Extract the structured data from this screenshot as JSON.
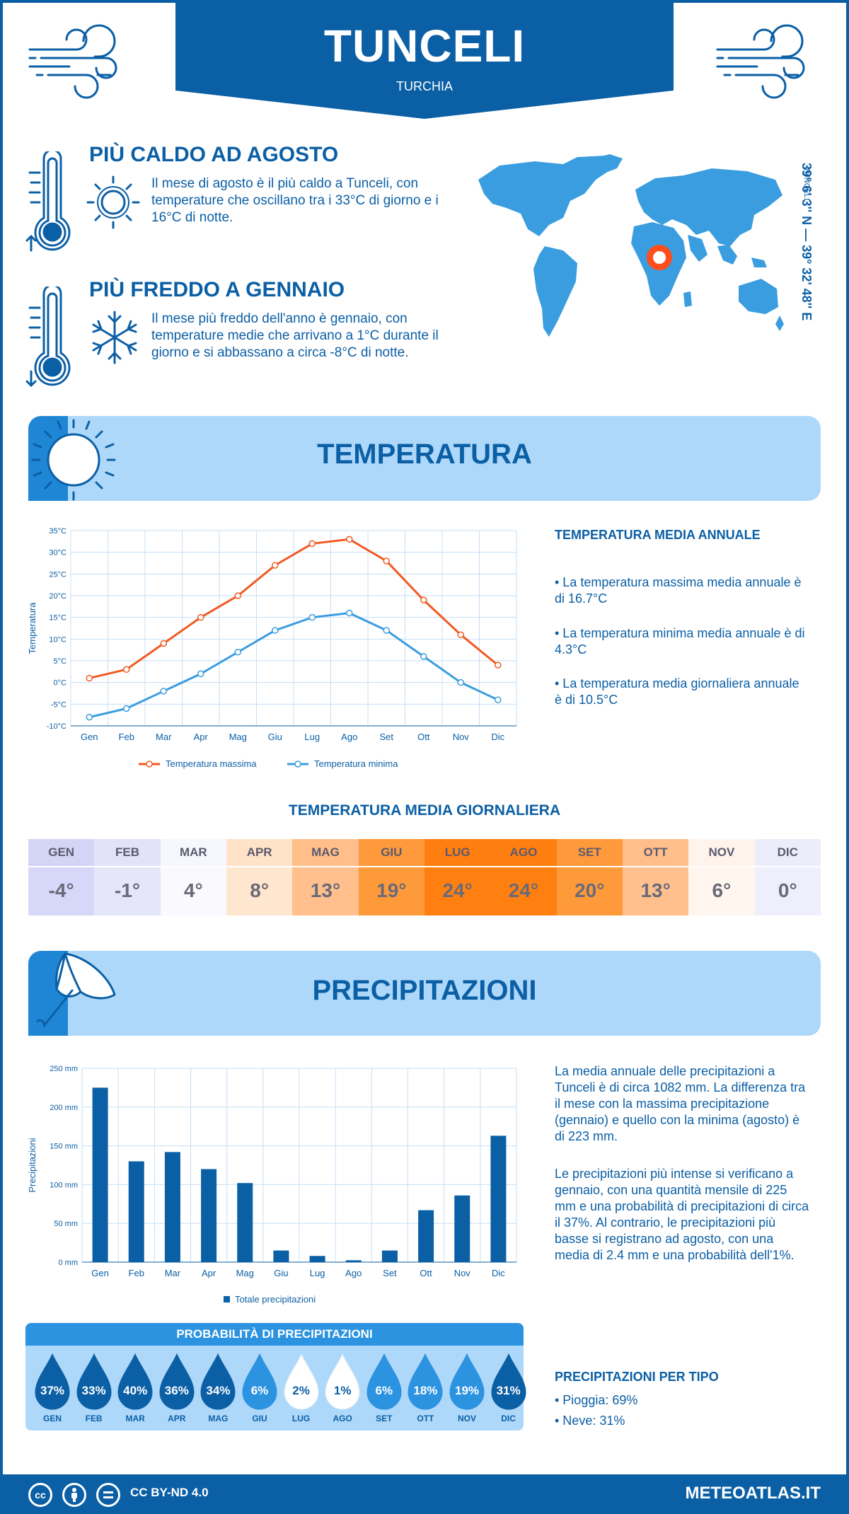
{
  "header": {
    "title": "TUNCELI",
    "subtitle": "TURCHIA"
  },
  "warmest": {
    "title": "PIÙ CALDO AD AGOSTO",
    "text": "Il mese di agosto è il più caldo a Tunceli, con temperature che oscillano tra i 33°C di giorno e i 16°C di notte."
  },
  "coldest": {
    "title": "PIÙ FREDDO A GENNAIO",
    "text": "Il mese più freddo dell'anno è gennaio, con temperature medie che arrivano a 1°C durante il giorno e si abbassano a circa -8°C di notte."
  },
  "location": {
    "city": "TUNCELI",
    "coords": "39° 6' 3'' N — 39° 32' 48'' E"
  },
  "temperature_section": {
    "title": "TEMPERATURA",
    "annual_title": "TEMPERATURA MEDIA ANNUALE",
    "annual_max": "• La temperatura massima media annuale è di 16.7°C",
    "annual_min": "• La temperatura minima media annuale è di 4.3°C",
    "annual_avg": "• La temperatura media giornaliera annuale è di 10.5°C"
  },
  "daily_section": {
    "title": "TEMPERATURA MEDIA GIORNALIERA",
    "months": [
      "GEN",
      "FEB",
      "MAR",
      "APR",
      "MAG",
      "GIU",
      "LUG",
      "AGO",
      "SET",
      "OTT",
      "NOV",
      "DIC"
    ],
    "values": [
      "-4°",
      "-1°",
      "4°",
      "8°",
      "13°",
      "19°",
      "24°",
      "24°",
      "20°",
      "13°",
      "6°",
      "0°"
    ],
    "head_colors": [
      "#d4d4f7",
      "#e2e2f9",
      "#f7f7fe",
      "#ffe2c8",
      "#ffbe8a",
      "#ff9a3c",
      "#ff7e10",
      "#ff7e10",
      "#ff9a3c",
      "#ffbe8a",
      "#fff4ec",
      "#ececfb"
    ],
    "value_colors": [
      "#d7d7fa",
      "#e6e6fb",
      "#f9f9fe",
      "#ffe6cf",
      "#ffc08d",
      "#ff9a3a",
      "#ff7f10",
      "#ff7f10",
      "#ff9a3a",
      "#ffc08d",
      "#fff6ef",
      "#eeeefc"
    ]
  },
  "precip_section": {
    "title": "PRECIPITAZIONI",
    "text1": "La media annuale delle precipitazioni a Tunceli è di circa 1082 mm. La differenza tra il mese con la massima precipitazione (gennaio) e quello con la minima (agosto) è di 223 mm.",
    "text2": "Le precipitazioni più intense si verificano a gennaio, con una quantità mensile di 225 mm e una probabilità di precipitazioni di circa il 37%. Al contrario, le precipitazioni più basse si registrano ad agosto, con una media di 2.4 mm e una probabilità dell'1%.",
    "prob_title": "PROBABILITÀ DI PRECIPITAZIONI",
    "prob_months": [
      "GEN",
      "FEB",
      "MAR",
      "APR",
      "MAG",
      "GIU",
      "LUG",
      "AGO",
      "SET",
      "OTT",
      "NOV",
      "DIC"
    ],
    "prob_values": [
      "37%",
      "33%",
      "40%",
      "36%",
      "34%",
      "6%",
      "2%",
      "1%",
      "6%",
      "18%",
      "19%",
      "31%"
    ],
    "prob_colors": [
      "#0b5fa5",
      "#0b5fa5",
      "#0b5fa5",
      "#0b5fa5",
      "#0b5fa5",
      "#2b93e0",
      "#ffffff",
      "#ffffff",
      "#2b93e0",
      "#2b93e0",
      "#2b93e0",
      "#0b5fa5"
    ],
    "type_title": "PRECIPITAZIONI PER TIPO",
    "rain": "• Pioggia: 69%",
    "snow": "• Neve: 31%"
  },
  "footer": {
    "license": "CC BY-ND 4.0",
    "brand": "METEOATLAS.IT",
    "cc": "cc"
  },
  "chart_data": [
    {
      "type": "line",
      "categories": [
        "Gen",
        "Feb",
        "Mar",
        "Apr",
        "Mag",
        "Giu",
        "Lug",
        "Ago",
        "Set",
        "Ott",
        "Nov",
        "Dic"
      ],
      "series": [
        {
          "name": "Temperatura massima",
          "values": [
            1,
            3,
            9,
            15,
            20,
            27,
            32,
            33,
            28,
            19,
            11,
            4
          ],
          "color": "#f15a24"
        },
        {
          "name": "Temperatura minima",
          "values": [
            -8,
            -6,
            -2,
            2,
            7,
            12,
            15,
            16,
            12,
            6,
            0,
            -4
          ],
          "color": "#3a9ddf"
        }
      ],
      "ylabel": "Temperatura",
      "yticks": [
        "35°C",
        "30°C",
        "25°C",
        "20°C",
        "15°C",
        "10°C",
        "5°C",
        "0°C",
        "-5°C",
        "-10°C"
      ],
      "ylim": [
        -10,
        35
      ],
      "grid": true,
      "legend": "bottom"
    },
    {
      "type": "bar",
      "categories": [
        "Gen",
        "Feb",
        "Mar",
        "Apr",
        "Mag",
        "Giu",
        "Lug",
        "Ago",
        "Set",
        "Ott",
        "Nov",
        "Dic"
      ],
      "series": [
        {
          "name": "Totale precipitazioni",
          "values": [
            225,
            130,
            142,
            120,
            102,
            15,
            8,
            2.4,
            15,
            67,
            86,
            163
          ],
          "color": "#0b5fa5"
        }
      ],
      "ylabel": "Precipitazioni",
      "yticks": [
        "250 mm",
        "200 mm",
        "150 mm",
        "100 mm",
        "50 mm",
        "0 mm"
      ],
      "ylim": [
        0,
        250
      ],
      "grid": true,
      "legend": "bottom"
    }
  ]
}
